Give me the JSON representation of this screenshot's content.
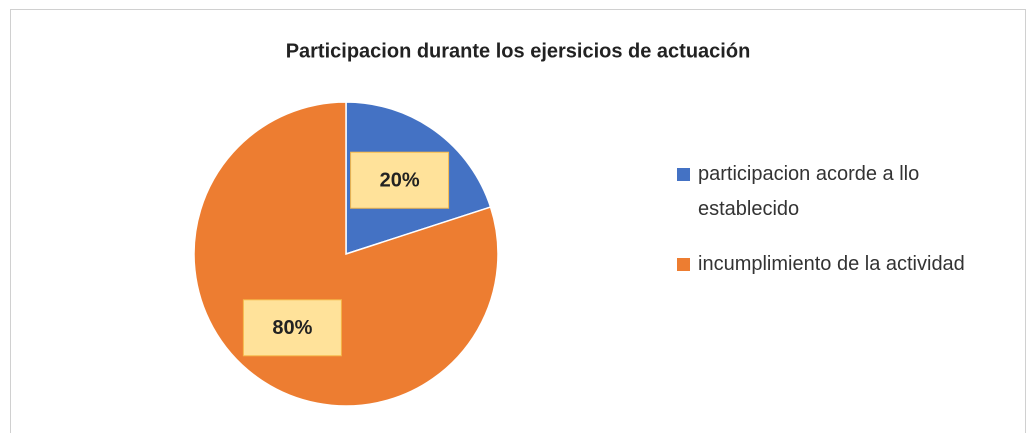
{
  "chart_data": {
    "type": "pie",
    "title": "Participacion durante los ejersicios de actuación",
    "categories": [
      "participacion acorde a llo establecido",
      "incumplimiento de la actividad"
    ],
    "values": [
      20,
      80
    ],
    "value_labels": [
      "20%",
      "80%"
    ],
    "colors": [
      "#4472c4",
      "#ed7d31"
    ],
    "legend": "right"
  }
}
